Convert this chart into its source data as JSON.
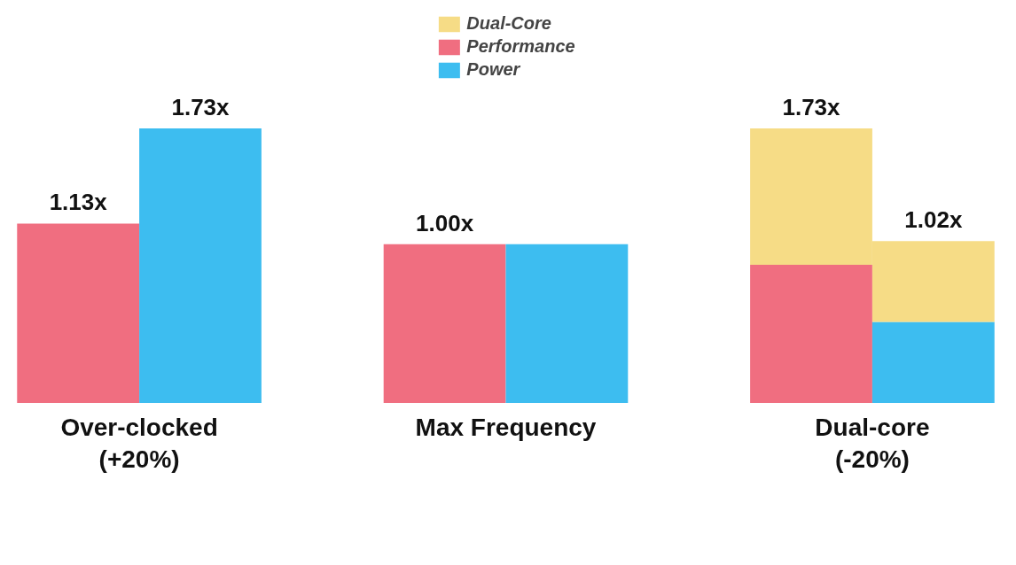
{
  "chart_data": {
    "type": "bar",
    "stacked": true,
    "categories": [
      null,
      null,
      null,
      null,
      null,
      null
    ],
    "series": [
      {
        "name": "Performance",
        "color": "#f06e80",
        "values": [
          1.13,
          null,
          1.0,
          null,
          0.87,
          null
        ],
        "value_labels": [
          "1.13x",
          null,
          "1.00x",
          null,
          null,
          null
        ]
      },
      {
        "name": "Power",
        "color": "#3dbdf0",
        "values": [
          null,
          1.73,
          null,
          1.0,
          null,
          0.51
        ],
        "value_labels": [
          null,
          "1.73x",
          null,
          null,
          null,
          null
        ]
      },
      {
        "name": "Dual-Core",
        "color": "#f6dc86",
        "values": [
          null,
          null,
          null,
          null,
          0.86,
          0.51
        ]
      }
    ],
    "totals": [
      null,
      null,
      null,
      null,
      "1.73x",
      "1.02x"
    ],
    "annotations": [
      "Over-clocked\n(+20%)",
      "Max Frequency",
      "Dual-core\n(-20%)"
    ],
    "legend": "top",
    "tick_labels": false,
    "grid": false
  }
}
